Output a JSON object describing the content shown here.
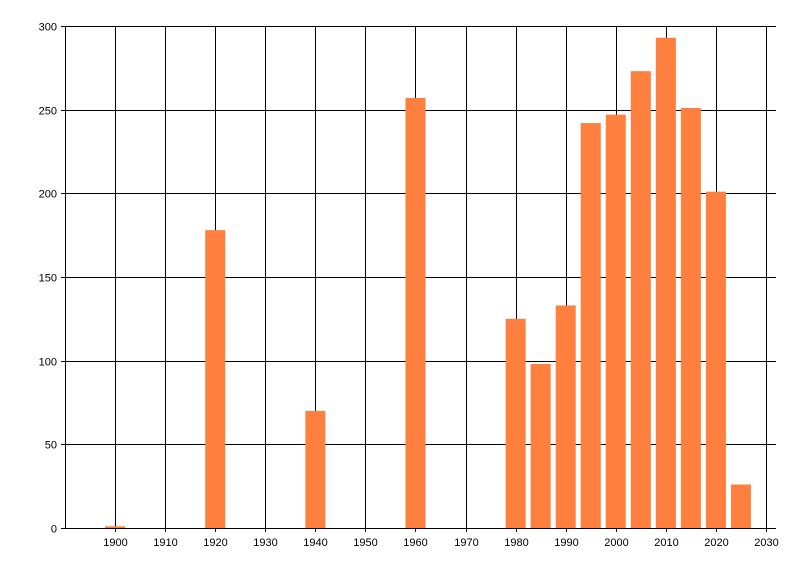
{
  "chart_data": {
    "type": "bar",
    "title": "",
    "xlabel": "",
    "ylabel": "",
    "xlim": [
      1890,
      2032
    ],
    "ylim": [
      0,
      300
    ],
    "x_ticks": [
      1900,
      1910,
      1920,
      1930,
      1940,
      1950,
      1960,
      1970,
      1980,
      1990,
      2000,
      2010,
      2020,
      2030
    ],
    "y_ticks": [
      0,
      50,
      100,
      150,
      200,
      250,
      300
    ],
    "grid": true,
    "legend": "none",
    "bar_color": "#FF7F3F",
    "series": [
      {
        "x": [
          1900,
          1920,
          1940,
          1960,
          1980,
          1985,
          1990,
          1995,
          2000,
          2005,
          2010,
          2015,
          2020,
          2025
        ],
        "values": [
          1,
          178,
          70,
          257,
          125,
          98,
          133,
          242,
          247,
          273,
          293,
          251,
          201,
          26
        ]
      }
    ]
  }
}
